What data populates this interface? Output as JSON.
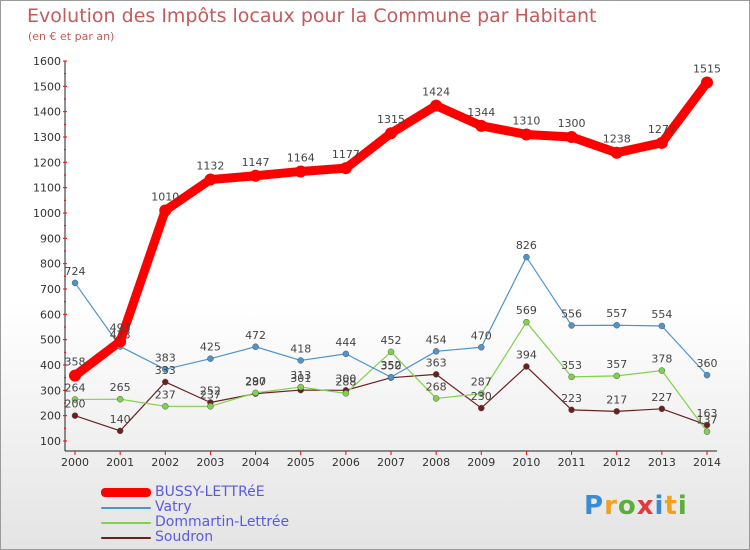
{
  "chart_data": {
    "type": "line",
    "title": "Evolution des Impôts locaux pour la Commune par Habitant",
    "subtitle": "(en € et par an)",
    "x": [
      "2000",
      "2001",
      "2002",
      "2003",
      "2004",
      "2005",
      "2006",
      "2007",
      "2008",
      "2009",
      "2010",
      "2011",
      "2012",
      "2013",
      "2014"
    ],
    "ylim": [
      100,
      1600
    ],
    "yticks": [
      100,
      200,
      300,
      400,
      500,
      600,
      700,
      800,
      900,
      1000,
      1100,
      1200,
      1300,
      1400,
      1500,
      1600
    ],
    "grid": "none",
    "legend_position": "bottom-left",
    "series": [
      {
        "name": "BUSSY-LETTRéE",
        "color": "#ff0000",
        "values": [
          358,
          493,
          1010,
          1132,
          1147,
          1164,
          1177,
          1315,
          1424,
          1344,
          1310,
          1300,
          1238,
          1277,
          1515
        ],
        "labels": [
          "358",
          "493",
          "1010",
          "1132",
          "1147",
          "1164",
          "1177",
          "1315",
          "1424",
          "1344",
          "1310",
          "1300",
          "1238",
          "1277",
          "1515"
        ]
      },
      {
        "name": "Vatry",
        "color": "#4f94cd",
        "values": [
          724,
          473,
          383,
          425,
          472,
          418,
          444,
          352,
          454,
          470,
          826,
          556,
          557,
          554,
          360
        ],
        "labels": [
          "724",
          "473",
          "383",
          "425",
          "472",
          "418",
          "444",
          "352",
          "454",
          "470",
          "826",
          "556",
          "557",
          "554",
          "360"
        ]
      },
      {
        "name": "Dommartin-Lettrée",
        "color": "#7fd24a",
        "values": [
          264,
          265,
          237,
          237,
          290,
          313,
          288,
          452,
          268,
          287,
          569,
          353,
          357,
          378,
          137
        ],
        "labels": [
          "264",
          "265",
          "237",
          "237",
          "290",
          "313",
          "288",
          "452",
          "268",
          "287",
          "569",
          "353",
          "357",
          "378",
          "137"
        ]
      },
      {
        "name": "Soudron",
        "color": "#6b2020",
        "values": [
          200,
          140,
          333,
          252,
          287,
          301,
          300,
          350,
          363,
          230,
          394,
          223,
          217,
          227,
          163
        ],
        "labels": [
          "200",
          "140",
          "333",
          "252",
          "287",
          "301",
          "300",
          "350",
          "363",
          "230",
          "394",
          "223",
          "217",
          "227",
          "163"
        ]
      }
    ]
  },
  "brand": "Proxiti"
}
